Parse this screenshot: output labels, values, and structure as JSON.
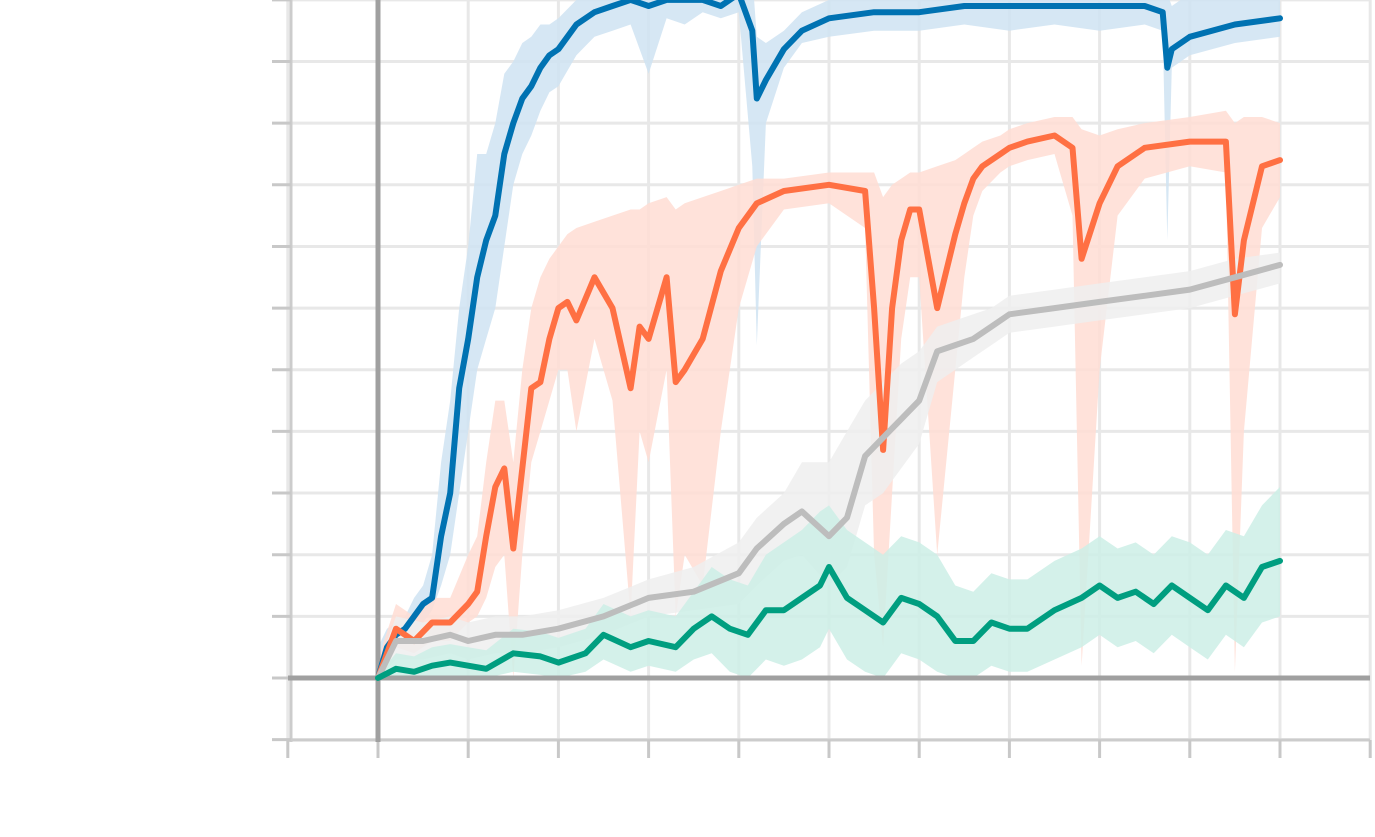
{
  "chart_data": {
    "type": "line",
    "title": "",
    "xlabel": "",
    "ylabel": "",
    "tick_labels_visible": false,
    "legend_visible": false,
    "grid": true,
    "xlim": [
      -1,
      11
    ],
    "ylim": [
      -1,
      12
    ],
    "xticks": [
      -1,
      0,
      1,
      2,
      3,
      4,
      5,
      6,
      7,
      8,
      9,
      10,
      11
    ],
    "yticks": [
      -1,
      0,
      1,
      2,
      3,
      4,
      5,
      6,
      7,
      8,
      9,
      10,
      11
    ],
    "series": [
      {
        "name": "blue",
        "color": "#0072B2",
        "band_color": "#cfe3f2",
        "x": [
          0,
          0.1,
          0.2,
          0.3,
          0.4,
          0.5,
          0.6,
          0.7,
          0.8,
          0.9,
          1.0,
          1.1,
          1.2,
          1.3,
          1.4,
          1.5,
          1.6,
          1.7,
          1.8,
          1.9,
          2.0,
          2.2,
          2.4,
          2.6,
          2.8,
          3.0,
          3.2,
          3.4,
          3.6,
          3.8,
          4.0,
          4.15,
          4.2,
          4.3,
          4.5,
          4.7,
          5.0,
          5.5,
          6.0,
          6.5,
          7.0,
          7.5,
          8.0,
          8.5,
          8.7,
          8.75,
          8.8,
          9.0,
          9.5,
          10.0
        ],
        "y": [
          0,
          0.5,
          0.7,
          0.8,
          1.0,
          1.2,
          1.3,
          2.3,
          3.0,
          4.7,
          5.5,
          6.5,
          7.1,
          7.5,
          8.5,
          9.0,
          9.4,
          9.6,
          9.9,
          10.1,
          10.2,
          10.6,
          10.8,
          10.9,
          11.0,
          10.9,
          11.0,
          11.0,
          11.0,
          10.9,
          11.1,
          10.5,
          9.4,
          9.7,
          10.2,
          10.5,
          10.7,
          10.8,
          10.8,
          10.9,
          10.9,
          10.9,
          10.9,
          10.9,
          10.8,
          9.9,
          10.2,
          10.4,
          10.6,
          10.7
        ],
        "band_upper": [
          0.5,
          0.8,
          0.9,
          1.0,
          1.3,
          1.5,
          2.0,
          3.5,
          4.5,
          6.0,
          7.0,
          8.5,
          8.5,
          9.0,
          9.8,
          10.0,
          10.3,
          10.4,
          10.6,
          10.6,
          10.7,
          11.0,
          11.2,
          11.3,
          11.3,
          11.2,
          11.3,
          11.2,
          11.2,
          11.1,
          11.3,
          11.4,
          10.4,
          10.3,
          10.5,
          10.8,
          11.0,
          11.1,
          11.1,
          11.2,
          11.3,
          11.2,
          11.3,
          11.2,
          11.2,
          11.1,
          10.9,
          11.1,
          11.2,
          11.2
        ],
        "band_lower": [
          0,
          0.2,
          0.5,
          0.6,
          0.7,
          0.9,
          1.1,
          1.5,
          2.0,
          3.0,
          4.0,
          5.0,
          5.5,
          6.0,
          7.0,
          8.0,
          8.5,
          8.8,
          9.2,
          9.5,
          9.6,
          10.1,
          10.4,
          10.5,
          10.6,
          9.8,
          10.7,
          10.6,
          10.8,
          10.7,
          10.8,
          8.3,
          5.4,
          9.0,
          9.9,
          10.3,
          10.4,
          10.5,
          10.5,
          10.6,
          10.5,
          10.6,
          10.5,
          10.6,
          10.5,
          7.1,
          9.9,
          10.1,
          10.3,
          10.4
        ]
      },
      {
        "name": "orange",
        "color": "#FF7043",
        "band_color": "#ffddd3",
        "x": [
          0,
          0.2,
          0.4,
          0.6,
          0.8,
          1.0,
          1.1,
          1.2,
          1.3,
          1.4,
          1.5,
          1.6,
          1.7,
          1.8,
          1.9,
          2.0,
          2.1,
          2.2,
          2.4,
          2.6,
          2.8,
          2.9,
          3.0,
          3.2,
          3.3,
          3.4,
          3.6,
          3.8,
          4.0,
          4.2,
          4.5,
          5.0,
          5.4,
          5.5,
          5.6,
          5.7,
          5.8,
          5.9,
          6.0,
          6.2,
          6.4,
          6.5,
          6.6,
          6.7,
          6.9,
          7.0,
          7.2,
          7.5,
          7.7,
          7.8,
          8.0,
          8.2,
          8.5,
          9.0,
          9.4,
          9.5,
          9.6,
          9.8,
          10.0
        ],
        "y": [
          0,
          0.8,
          0.6,
          0.9,
          0.9,
          1.2,
          1.4,
          2.3,
          3.1,
          3.4,
          2.1,
          3.4,
          4.7,
          4.8,
          5.5,
          6.0,
          6.1,
          5.8,
          6.5,
          6.0,
          4.7,
          5.7,
          5.5,
          6.5,
          4.8,
          5.0,
          5.5,
          6.6,
          7.3,
          7.7,
          7.9,
          8.0,
          7.9,
          6.0,
          3.7,
          6.0,
          7.1,
          7.6,
          7.6,
          6.0,
          7.2,
          7.7,
          8.1,
          8.3,
          8.5,
          8.6,
          8.7,
          8.8,
          8.6,
          6.8,
          7.7,
          8.3,
          8.6,
          8.7,
          8.7,
          5.9,
          7.1,
          8.3,
          8.4
        ],
        "band_upper": [
          0.3,
          1.2,
          1.0,
          1.3,
          1.3,
          2.0,
          2.3,
          3.5,
          4.5,
          4.5,
          3.5,
          5.0,
          6.0,
          6.5,
          6.8,
          7.0,
          7.2,
          7.3,
          7.4,
          7.5,
          7.6,
          7.6,
          7.7,
          7.8,
          7.6,
          7.7,
          7.8,
          7.9,
          8.0,
          8.1,
          8.1,
          8.2,
          8.2,
          8.2,
          7.8,
          8.0,
          8.1,
          8.2,
          8.2,
          8.3,
          8.4,
          8.5,
          8.6,
          8.7,
          8.8,
          8.9,
          9.0,
          9.1,
          9.1,
          8.9,
          8.8,
          8.9,
          9.0,
          9.1,
          9.2,
          9.0,
          9.1,
          9.1,
          9.0
        ],
        "band_lower": [
          0,
          0.5,
          0.4,
          0.6,
          0.6,
          0.9,
          1.0,
          1.3,
          1.8,
          2.0,
          0.0,
          2.0,
          3.5,
          4.0,
          4.5,
          5.0,
          5.0,
          4.0,
          5.5,
          4.5,
          1.0,
          4.0,
          3.5,
          5.0,
          1.0,
          2.0,
          1.5,
          4.0,
          6.0,
          7.0,
          7.6,
          7.7,
          7.3,
          2.0,
          0.5,
          3.0,
          5.5,
          6.5,
          6.5,
          2.0,
          5.0,
          6.5,
          7.5,
          7.9,
          8.2,
          8.3,
          8.4,
          8.5,
          7.5,
          0.2,
          5.0,
          7.5,
          8.1,
          8.3,
          8.2,
          0.1,
          4.0,
          7.3,
          7.8
        ]
      },
      {
        "name": "gray",
        "color": "#bdbdbd",
        "band_color": "#eeeeee",
        "x": [
          0,
          0.2,
          0.5,
          0.8,
          1.0,
          1.3,
          1.6,
          2.0,
          2.5,
          3.0,
          3.5,
          4.0,
          4.2,
          4.5,
          4.7,
          5.0,
          5.2,
          5.4,
          5.6,
          5.8,
          6.0,
          6.2,
          6.4,
          6.6,
          6.8,
          7.0,
          7.5,
          8.0,
          8.5,
          9.0,
          9.5,
          10.0
        ],
        "y": [
          0,
          0.6,
          0.6,
          0.7,
          0.6,
          0.7,
          0.7,
          0.8,
          1.0,
          1.3,
          1.4,
          1.7,
          2.1,
          2.5,
          2.7,
          2.3,
          2.6,
          3.6,
          3.9,
          4.2,
          4.5,
          5.3,
          5.4,
          5.5,
          5.7,
          5.9,
          6.0,
          6.1,
          6.2,
          6.3,
          6.5,
          6.7
        ],
        "band_upper": [
          0.2,
          1.0,
          0.9,
          1.0,
          0.9,
          1.0,
          1.0,
          1.1,
          1.3,
          1.6,
          1.8,
          2.2,
          2.6,
          3.0,
          3.5,
          3.5,
          4.0,
          4.5,
          4.8,
          5.1,
          5.3,
          5.7,
          5.8,
          5.9,
          6.0,
          6.2,
          6.3,
          6.4,
          6.5,
          6.6,
          6.8,
          6.9
        ],
        "band_lower": [
          0,
          0.3,
          0.3,
          0.4,
          0.3,
          0.4,
          0.4,
          0.5,
          0.7,
          1.0,
          1.1,
          1.2,
          1.5,
          1.9,
          2.0,
          1.5,
          1.8,
          2.8,
          3.0,
          3.4,
          3.8,
          4.8,
          5.0,
          5.2,
          5.4,
          5.6,
          5.7,
          5.8,
          5.9,
          6.0,
          6.2,
          6.4
        ]
      },
      {
        "name": "green",
        "color": "#009E80",
        "band_color": "#cceee6",
        "x": [
          0,
          0.2,
          0.4,
          0.6,
          0.8,
          1.0,
          1.2,
          1.5,
          1.8,
          2.0,
          2.3,
          2.5,
          2.8,
          3.0,
          3.3,
          3.5,
          3.7,
          3.9,
          4.1,
          4.3,
          4.5,
          4.7,
          4.9,
          5.0,
          5.2,
          5.4,
          5.6,
          5.8,
          6.0,
          6.2,
          6.4,
          6.6,
          6.8,
          7.0,
          7.2,
          7.5,
          7.8,
          8.0,
          8.2,
          8.4,
          8.6,
          8.8,
          9.0,
          9.2,
          9.4,
          9.6,
          9.8,
          10.0
        ],
        "y": [
          0,
          0.15,
          0.1,
          0.2,
          0.25,
          0.2,
          0.15,
          0.4,
          0.35,
          0.25,
          0.4,
          0.7,
          0.5,
          0.6,
          0.5,
          0.8,
          1.0,
          0.8,
          0.7,
          1.1,
          1.1,
          1.3,
          1.5,
          1.8,
          1.3,
          1.1,
          0.9,
          1.3,
          1.2,
          1.0,
          0.6,
          0.6,
          0.9,
          0.8,
          0.8,
          1.1,
          1.3,
          1.5,
          1.3,
          1.4,
          1.2,
          1.5,
          1.3,
          1.1,
          1.5,
          1.3,
          1.8,
          1.9
        ],
        "band_upper": [
          0.05,
          0.4,
          0.35,
          0.5,
          0.55,
          0.5,
          0.45,
          0.8,
          0.75,
          0.65,
          0.8,
          1.2,
          1.0,
          1.1,
          1.0,
          1.4,
          1.8,
          1.6,
          1.5,
          2.0,
          2.2,
          2.4,
          2.7,
          2.8,
          2.4,
          2.2,
          2.0,
          2.3,
          2.2,
          2.0,
          1.5,
          1.4,
          1.7,
          1.6,
          1.6,
          1.9,
          2.1,
          2.3,
          2.1,
          2.2,
          2.0,
          2.3,
          2.2,
          2.0,
          2.4,
          2.3,
          2.8,
          3.1
        ],
        "band_lower": [
          0,
          0.0,
          0.0,
          0.0,
          0.0,
          0.0,
          0.0,
          0.1,
          0.05,
          0.0,
          0.1,
          0.3,
          0.1,
          0.2,
          0.1,
          0.3,
          0.4,
          0.1,
          0.0,
          0.3,
          0.2,
          0.3,
          0.5,
          0.8,
          0.3,
          0.1,
          0.0,
          0.4,
          0.3,
          0.1,
          0.0,
          0.0,
          0.2,
          0.1,
          0.1,
          0.3,
          0.5,
          0.7,
          0.5,
          0.6,
          0.4,
          0.7,
          0.5,
          0.3,
          0.7,
          0.5,
          0.9,
          1.0
        ]
      }
    ]
  }
}
